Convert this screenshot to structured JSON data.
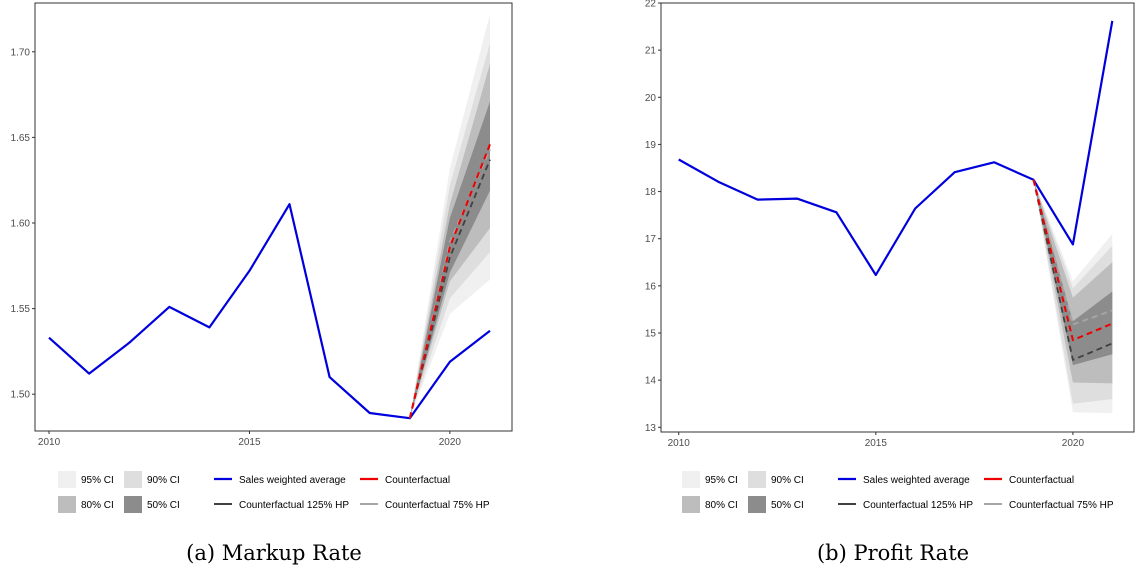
{
  "colors": {
    "sales": "#0000dd",
    "counterfactual": "#ee0000",
    "cf125": "#404040",
    "cf75": "#a6a6a6",
    "ci95": "#f0f0f0",
    "ci90": "#dedede",
    "ci80": "#bdbdbd",
    "ci50": "#8c8c8c"
  },
  "legend": {
    "ci": [
      "95% CI",
      "90% CI",
      "80% CI",
      "50% CI"
    ],
    "lines": [
      "Sales weighted average",
      "Counterfactual",
      "Counterfactual 125% HP",
      "Counterfactual 75% HP"
    ]
  },
  "chart_data": [
    {
      "type": "line",
      "caption": "(a) Markup Rate",
      "x_ticks": [
        2010,
        2015,
        2020
      ],
      "y_ticks": [
        1.5,
        1.55,
        1.6,
        1.65,
        1.7
      ],
      "y_tick_labels": [
        "1.50",
        "1.55",
        "1.60",
        "1.65",
        "1.70"
      ],
      "xlim": [
        2009.65,
        2021.55
      ],
      "ylim": [
        1.4785,
        1.7285
      ],
      "grid": false,
      "legend_position": "bottom",
      "series": [
        {
          "name": "Sales weighted average",
          "x": [
            2010,
            2011,
            2012,
            2013,
            2014,
            2015,
            2016,
            2017,
            2018,
            2019,
            2020,
            2021
          ],
          "y": [
            1.533,
            1.512,
            1.53,
            1.551,
            1.539,
            1.572,
            1.611,
            1.51,
            1.489,
            1.486,
            1.519,
            1.537
          ]
        },
        {
          "name": "Counterfactual",
          "x": [
            2019,
            2020,
            2021
          ],
          "y": [
            1.486,
            1.586,
            1.646
          ]
        },
        {
          "name": "Counterfactual 125% HP",
          "x": [
            2019,
            2020,
            2021
          ],
          "y": [
            1.486,
            1.58,
            1.637
          ]
        },
        {
          "name": "Counterfactual 75% HP",
          "x": [
            2019,
            2020,
            2021
          ],
          "y": [
            1.486,
            1.589,
            1.643
          ]
        }
      ],
      "ci_bands": [
        {
          "name": "95% CI",
          "x": [
            2019,
            2020,
            2021
          ],
          "lower": [
            1.486,
            1.547,
            1.567
          ],
          "upper": [
            1.486,
            1.632,
            1.722
          ]
        },
        {
          "name": "90% CI",
          "x": [
            2019,
            2020,
            2021
          ],
          "lower": [
            1.486,
            1.556,
            1.583
          ],
          "upper": [
            1.486,
            1.622,
            1.705
          ]
        },
        {
          "name": "80% CI",
          "x": [
            2019,
            2020,
            2021
          ],
          "lower": [
            1.486,
            1.566,
            1.597
          ],
          "upper": [
            1.486,
            1.611,
            1.693
          ]
        },
        {
          "name": "50% CI",
          "x": [
            2019,
            2020,
            2021
          ],
          "lower": [
            1.486,
            1.571,
            1.619
          ],
          "upper": [
            1.486,
            1.603,
            1.671
          ]
        }
      ]
    },
    {
      "type": "line",
      "caption": "(b) Profit Rate",
      "x_ticks": [
        2010,
        2015,
        2020
      ],
      "y_ticks": [
        13,
        14,
        15,
        16,
        17,
        18,
        19,
        20,
        21,
        22
      ],
      "y_tick_labels": [
        "13",
        "14",
        "15",
        "16",
        "17",
        "18",
        "19",
        "20",
        "21",
        "22"
      ],
      "xlim": [
        2009.55,
        2021.55
      ],
      "ylim": [
        12.9,
        22.0
      ],
      "grid": false,
      "legend_position": "bottom",
      "series": [
        {
          "name": "Sales weighted average",
          "x": [
            2010,
            2011,
            2012,
            2013,
            2014,
            2015,
            2016,
            2017,
            2018,
            2019,
            2020,
            2021
          ],
          "y": [
            18.68,
            18.21,
            17.83,
            17.85,
            17.56,
            16.23,
            17.64,
            18.41,
            18.62,
            18.25,
            16.88,
            21.62
          ]
        },
        {
          "name": "Counterfactual",
          "x": [
            2019,
            2020,
            2021
          ],
          "y": [
            18.25,
            14.85,
            15.2
          ]
        },
        {
          "name": "Counterfactual 125% HP",
          "x": [
            2019,
            2020,
            2021
          ],
          "y": [
            18.25,
            14.43,
            14.78
          ]
        },
        {
          "name": "Counterfactual 75% HP",
          "x": [
            2019,
            2020,
            2021
          ],
          "y": [
            18.25,
            15.18,
            15.48
          ]
        }
      ],
      "ci_bands": [
        {
          "name": "95% CI",
          "x": [
            2019,
            2020,
            2021
          ],
          "lower": [
            18.25,
            13.32,
            13.3
          ],
          "upper": [
            18.25,
            16.1,
            17.1
          ]
        },
        {
          "name": "90% CI",
          "x": [
            2019,
            2020,
            2021
          ],
          "lower": [
            18.25,
            13.5,
            13.6
          ],
          "upper": [
            18.25,
            15.95,
            16.85
          ]
        },
        {
          "name": "80% CI",
          "x": [
            2019,
            2020,
            2021
          ],
          "lower": [
            18.25,
            13.95,
            13.93
          ],
          "upper": [
            18.25,
            15.75,
            16.5
          ]
        },
        {
          "name": "50% CI",
          "x": [
            2019,
            2020,
            2021
          ],
          "lower": [
            18.25,
            14.32,
            14.55
          ],
          "upper": [
            18.25,
            15.25,
            15.88
          ]
        }
      ]
    }
  ]
}
